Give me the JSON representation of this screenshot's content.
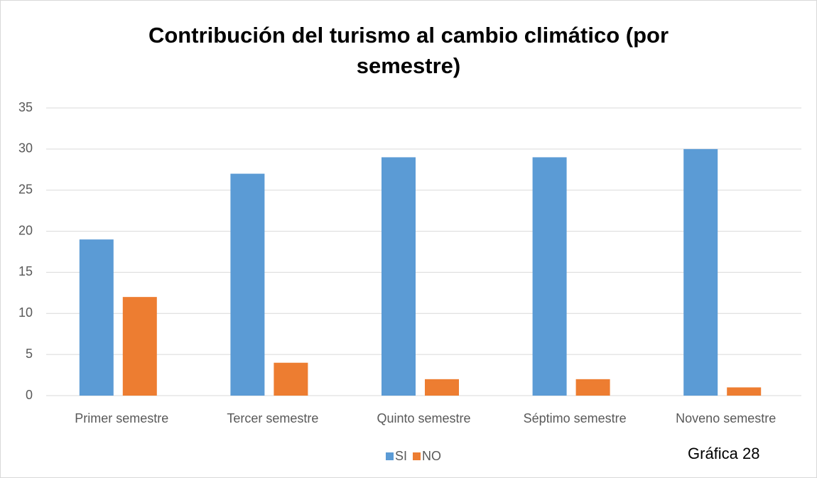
{
  "chart_data": {
    "type": "bar",
    "title": "Contribución del turismo al cambio climático (por semestre)",
    "annotation": "Gráfica 28",
    "categories": [
      "Primer semestre",
      "Tercer semestre",
      "Quinto semestre",
      "Séptimo semestre",
      "Noveno semestre"
    ],
    "series": [
      {
        "name": "SI",
        "color": "#5b9bd5",
        "values": [
          19,
          27,
          29,
          29,
          30
        ]
      },
      {
        "name": "NO",
        "color": "#ed7d31",
        "values": [
          12,
          4,
          2,
          2,
          1
        ]
      }
    ],
    "ylim": [
      0,
      35
    ],
    "yticks": [
      0,
      5,
      10,
      15,
      20,
      25,
      30,
      35
    ],
    "grid": true,
    "legend": "bottom"
  }
}
